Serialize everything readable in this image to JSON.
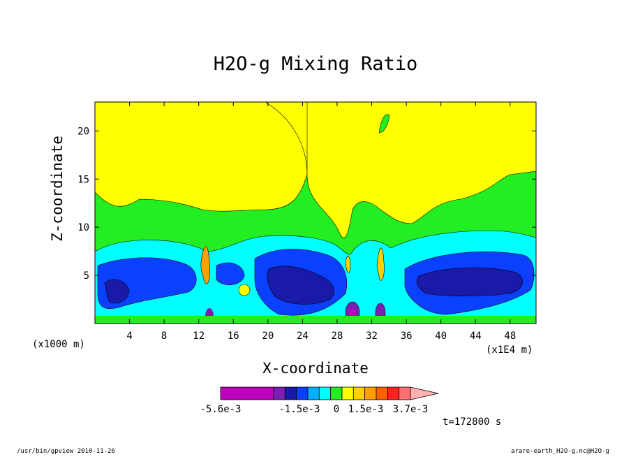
{
  "chart_data": {
    "type": "heatmap",
    "title": "H2O-g Mixing Ratio",
    "xlabel": "X-coordinate",
    "ylabel": "Z-coordinate",
    "x_unit_left": "(x1000 m)",
    "x_unit_right": "(x1E4 m)",
    "xlim": [
      0,
      51
    ],
    "ylim": [
      0,
      23
    ],
    "x_ticks": [
      4,
      8,
      12,
      16,
      20,
      24,
      28,
      32,
      36,
      40,
      44,
      48
    ],
    "y_ticks": [
      5,
      10,
      15,
      20
    ],
    "colorbar": {
      "labels": [
        "-5.6e-3",
        "-1.5e-3",
        "0",
        "1.5e-3",
        "3.7e-3"
      ],
      "colors": [
        "#bf00bf",
        "#7a1fb0",
        "#1a1aa8",
        "#0a40ff",
        "#00b0ff",
        "#00ffff",
        "#22ee22",
        "#ffff00",
        "#ffd000",
        "#ffa000",
        "#ff6000",
        "#ff2020",
        "#ff7070",
        "#ffb0b0"
      ]
    },
    "time_label": "t=172800 s",
    "background_level_color": "#ffff00"
  },
  "footer": {
    "left": "/usr/bin/gpview  2010-11-26",
    "right": "arare-earth_H2O-g.nc@H2O-g"
  }
}
